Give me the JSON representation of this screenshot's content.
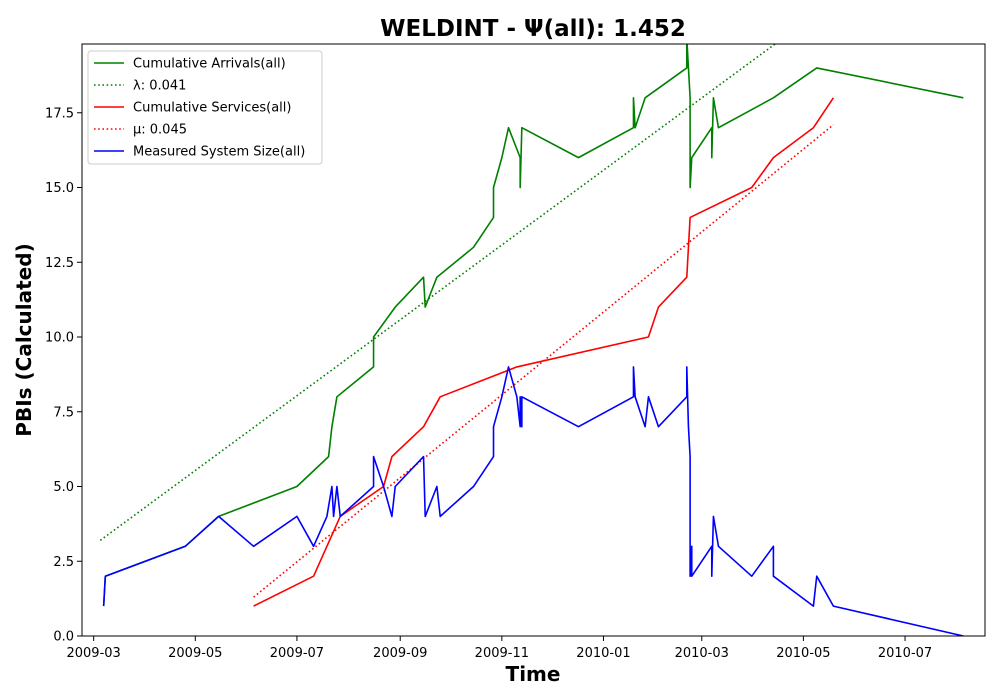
{
  "chart_data": {
    "type": "line",
    "title": "WELDINT -  Ψ(all): 1.452",
    "xlabel": "Time",
    "ylabel": "PBIs (Calculated)",
    "x_axis_type": "date",
    "xlim": [
      "2009-02-22",
      "2010-08-18"
    ],
    "ylim": [
      0,
      19.8
    ],
    "grid": false,
    "legend_position": "top-left",
    "x_ticks": [
      "2009-03-01",
      "2009-05-01",
      "2009-07-01",
      "2009-09-01",
      "2009-11-01",
      "2010-01-01",
      "2010-03-01",
      "2010-05-01",
      "2010-07-01"
    ],
    "x_tick_labels": [
      "2009-03",
      "2009-05",
      "2009-07",
      "2009-09",
      "2009-11",
      "2010-01",
      "2010-03",
      "2010-05",
      "2010-07"
    ],
    "y_ticks": [
      0,
      2.5,
      5,
      7.5,
      10,
      12.5,
      15,
      17.5
    ],
    "y_tick_labels": [
      "0.0",
      "2.5",
      "5.0",
      "7.5",
      "10.0",
      "12.5",
      "15.0",
      "17.5"
    ],
    "series": [
      {
        "name": "Cumulative Arrivals(all)",
        "color": "#008000",
        "style": "solid",
        "points": [
          [
            "2009-03-07",
            1
          ],
          [
            "2009-03-08",
            2
          ],
          [
            "2009-04-25",
            3
          ],
          [
            "2009-05-15",
            4
          ],
          [
            "2009-07-01",
            5
          ],
          [
            "2009-07-20",
            6
          ],
          [
            "2009-07-22",
            7
          ],
          [
            "2009-07-25",
            8
          ],
          [
            "2009-08-16",
            9
          ],
          [
            "2009-08-16",
            10
          ],
          [
            "2009-08-29",
            11
          ],
          [
            "2009-09-15",
            12
          ],
          [
            "2009-09-16",
            11
          ],
          [
            "2009-09-23",
            12
          ],
          [
            "2009-10-15",
            13
          ],
          [
            "2009-10-27",
            14
          ],
          [
            "2009-10-27",
            15
          ],
          [
            "2009-11-01",
            16
          ],
          [
            "2009-11-05",
            17
          ],
          [
            "2009-11-12",
            16
          ],
          [
            "2009-11-12",
            15
          ],
          [
            "2009-11-13",
            17
          ],
          [
            "2009-12-17",
            16
          ],
          [
            "2010-01-19",
            17
          ],
          [
            "2010-01-19",
            18
          ],
          [
            "2010-01-20",
            17
          ],
          [
            "2010-01-26",
            18
          ],
          [
            "2010-02-20",
            19
          ],
          [
            "2010-02-20",
            20
          ],
          [
            "2010-02-22",
            18
          ],
          [
            "2010-02-22",
            15
          ],
          [
            "2010-02-23",
            16
          ],
          [
            "2010-03-07",
            17
          ],
          [
            "2010-03-07",
            16
          ],
          [
            "2010-03-08",
            18
          ],
          [
            "2010-03-11",
            17
          ],
          [
            "2010-04-13",
            18
          ],
          [
            "2010-05-09",
            19
          ],
          [
            "2010-08-05",
            18
          ]
        ]
      },
      {
        "name": "λ: 0.041",
        "color": "#008000",
        "style": "dotted",
        "points": [
          [
            "2009-03-05",
            3.2
          ],
          [
            "2010-04-14",
            19.8
          ]
        ]
      },
      {
        "name": "Cumulative Services(all)",
        "color": "#ff0000",
        "style": "solid",
        "points": [
          [
            "2009-06-05",
            1
          ],
          [
            "2009-07-11",
            2
          ],
          [
            "2009-07-19",
            3
          ],
          [
            "2009-07-27",
            4
          ],
          [
            "2009-08-22",
            5
          ],
          [
            "2009-08-27",
            6
          ],
          [
            "2009-09-15",
            7
          ],
          [
            "2009-09-25",
            8
          ],
          [
            "2009-11-10",
            9
          ],
          [
            "2010-01-28",
            10
          ],
          [
            "2010-02-03",
            11
          ],
          [
            "2010-02-20",
            12
          ],
          [
            "2010-02-21",
            13
          ],
          [
            "2010-02-22",
            14
          ],
          [
            "2010-03-31",
            15
          ],
          [
            "2010-04-13",
            16
          ],
          [
            "2010-05-07",
            17
          ],
          [
            "2010-05-19",
            18
          ]
        ]
      },
      {
        "name": "μ: 0.045",
        "color": "#ff0000",
        "style": "dotted",
        "points": [
          [
            "2009-06-05",
            1.3
          ],
          [
            "2010-05-19",
            17.1
          ]
        ]
      },
      {
        "name": "Measured System Size(all)",
        "color": "#0000ff",
        "style": "solid",
        "points": [
          [
            "2009-03-07",
            1
          ],
          [
            "2009-03-08",
            2
          ],
          [
            "2009-04-25",
            3
          ],
          [
            "2009-05-15",
            4
          ],
          [
            "2009-06-05",
            3
          ],
          [
            "2009-07-01",
            4
          ],
          [
            "2009-07-11",
            3
          ],
          [
            "2009-07-19",
            4
          ],
          [
            "2009-07-22",
            5
          ],
          [
            "2009-07-23",
            4
          ],
          [
            "2009-07-25",
            5
          ],
          [
            "2009-07-27",
            4
          ],
          [
            "2009-08-16",
            5
          ],
          [
            "2009-08-16",
            6
          ],
          [
            "2009-08-22",
            5
          ],
          [
            "2009-08-27",
            4
          ],
          [
            "2009-08-29",
            5
          ],
          [
            "2009-09-15",
            6
          ],
          [
            "2009-09-16",
            4
          ],
          [
            "2009-09-23",
            5
          ],
          [
            "2009-09-25",
            4
          ],
          [
            "2009-10-15",
            5
          ],
          [
            "2009-10-27",
            6
          ],
          [
            "2009-10-27",
            7
          ],
          [
            "2009-11-01",
            8
          ],
          [
            "2009-11-05",
            9
          ],
          [
            "2009-11-10",
            8
          ],
          [
            "2009-11-12",
            7
          ],
          [
            "2009-11-12",
            8
          ],
          [
            "2009-11-13",
            7
          ],
          [
            "2009-11-13",
            8
          ],
          [
            "2009-12-17",
            7
          ],
          [
            "2010-01-19",
            8
          ],
          [
            "2010-01-19",
            9
          ],
          [
            "2010-01-20",
            8
          ],
          [
            "2010-01-26",
            7
          ],
          [
            "2010-01-28",
            8
          ],
          [
            "2010-02-03",
            7
          ],
          [
            "2010-02-20",
            8
          ],
          [
            "2010-02-20",
            9
          ],
          [
            "2010-02-21",
            7
          ],
          [
            "2010-02-22",
            6
          ],
          [
            "2010-02-22",
            5
          ],
          [
            "2010-02-22",
            2
          ],
          [
            "2010-02-23",
            3
          ],
          [
            "2010-02-23",
            2
          ],
          [
            "2010-03-07",
            3
          ],
          [
            "2010-03-07",
            2
          ],
          [
            "2010-03-08",
            4
          ],
          [
            "2010-03-11",
            3
          ],
          [
            "2010-03-31",
            2
          ],
          [
            "2010-04-13",
            3
          ],
          [
            "2010-04-13",
            2
          ],
          [
            "2010-05-07",
            1
          ],
          [
            "2010-05-09",
            2
          ],
          [
            "2010-05-19",
            1
          ],
          [
            "2010-08-05",
            0
          ]
        ]
      }
    ]
  }
}
